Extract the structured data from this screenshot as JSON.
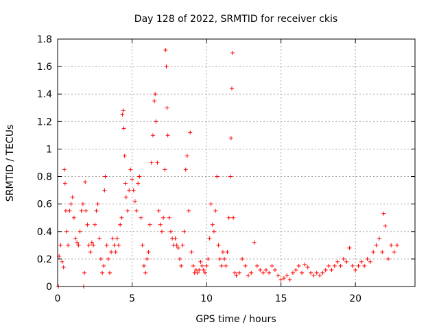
{
  "chart_data": {
    "type": "scatter",
    "title": "Day 128 of 2022, SRMTID for receiver ckis",
    "xlabel": "GPS time / hours",
    "ylabel": "SRMTID / TECUs",
    "xlim": [
      0,
      24
    ],
    "ylim": [
      0,
      1.8
    ],
    "grid": true,
    "x_ticks": [
      0,
      5,
      10,
      15,
      20
    ],
    "x_tick_labels": [
      "0",
      "5",
      "10",
      "15",
      "20"
    ],
    "y_ticks": [
      0,
      0.2,
      0.4,
      0.6,
      0.8,
      1.0,
      1.2,
      1.4,
      1.6,
      1.8
    ],
    "y_tick_labels": [
      "0",
      "0.2",
      "0.4",
      "0.6",
      "0.8",
      "1",
      "1.2",
      "1.4",
      "1.6",
      "1.8"
    ],
    "series": [
      {
        "name": "SRMTID",
        "marker": "+",
        "color": "#ff0000",
        "points": [
          [
            0.05,
            0.0
          ],
          [
            0.1,
            0.22
          ],
          [
            0.2,
            0.3
          ],
          [
            0.3,
            0.18
          ],
          [
            0.4,
            0.14
          ],
          [
            0.45,
            0.85
          ],
          [
            0.5,
            0.75
          ],
          [
            0.55,
            0.55
          ],
          [
            0.6,
            0.4
          ],
          [
            0.7,
            0.3
          ],
          [
            0.8,
            0.55
          ],
          [
            0.9,
            0.6
          ],
          [
            1.0,
            0.65
          ],
          [
            1.1,
            0.5
          ],
          [
            1.2,
            0.35
          ],
          [
            1.3,
            0.32
          ],
          [
            1.4,
            0.3
          ],
          [
            1.5,
            0.4
          ],
          [
            1.6,
            0.55
          ],
          [
            1.7,
            0.6
          ],
          [
            1.75,
            0.0
          ],
          [
            1.8,
            0.1
          ],
          [
            1.85,
            0.76
          ],
          [
            1.9,
            0.55
          ],
          [
            2.0,
            0.45
          ],
          [
            2.1,
            0.3
          ],
          [
            2.2,
            0.25
          ],
          [
            2.3,
            0.32
          ],
          [
            2.4,
            0.3
          ],
          [
            2.5,
            0.45
          ],
          [
            2.6,
            0.55
          ],
          [
            2.7,
            0.6
          ],
          [
            2.8,
            0.35
          ],
          [
            2.9,
            0.2
          ],
          [
            3.0,
            0.1
          ],
          [
            3.1,
            0.15
          ],
          [
            3.15,
            0.7
          ],
          [
            3.2,
            0.8
          ],
          [
            3.3,
            0.3
          ],
          [
            3.4,
            0.2
          ],
          [
            3.5,
            0.1
          ],
          [
            3.6,
            0.25
          ],
          [
            3.7,
            0.35
          ],
          [
            3.8,
            0.3
          ],
          [
            3.9,
            0.25
          ],
          [
            4.0,
            0.35
          ],
          [
            4.1,
            0.3
          ],
          [
            4.2,
            0.45
          ],
          [
            4.3,
            0.5
          ],
          [
            4.35,
            1.25
          ],
          [
            4.4,
            1.28
          ],
          [
            4.45,
            1.15
          ],
          [
            4.5,
            0.95
          ],
          [
            4.55,
            0.75
          ],
          [
            4.6,
            0.65
          ],
          [
            4.7,
            0.55
          ],
          [
            4.8,
            0.7
          ],
          [
            4.9,
            0.85
          ],
          [
            5.0,
            0.78
          ],
          [
            5.1,
            0.7
          ],
          [
            5.2,
            0.62
          ],
          [
            5.3,
            0.55
          ],
          [
            5.4,
            0.75
          ],
          [
            5.5,
            0.8
          ],
          [
            5.6,
            0.5
          ],
          [
            5.7,
            0.3
          ],
          [
            5.8,
            0.15
          ],
          [
            5.9,
            0.1
          ],
          [
            6.0,
            0.2
          ],
          [
            6.1,
            0.25
          ],
          [
            6.2,
            0.45
          ],
          [
            6.3,
            0.9
          ],
          [
            6.4,
            1.1
          ],
          [
            6.5,
            1.35
          ],
          [
            6.55,
            1.4
          ],
          [
            6.6,
            1.2
          ],
          [
            6.7,
            0.9
          ],
          [
            6.8,
            0.55
          ],
          [
            6.9,
            0.45
          ],
          [
            7.0,
            0.4
          ],
          [
            7.1,
            0.5
          ],
          [
            7.2,
            0.85
          ],
          [
            7.25,
            1.72
          ],
          [
            7.3,
            1.6
          ],
          [
            7.35,
            1.3
          ],
          [
            7.4,
            1.1
          ],
          [
            7.5,
            0.5
          ],
          [
            7.6,
            0.4
          ],
          [
            7.7,
            0.35
          ],
          [
            7.8,
            0.3
          ],
          [
            7.9,
            0.35
          ],
          [
            8.0,
            0.3
          ],
          [
            8.1,
            0.28
          ],
          [
            8.2,
            0.2
          ],
          [
            8.3,
            0.15
          ],
          [
            8.4,
            0.3
          ],
          [
            8.5,
            0.4
          ],
          [
            8.6,
            0.85
          ],
          [
            8.7,
            0.95
          ],
          [
            8.8,
            0.55
          ],
          [
            8.9,
            1.12
          ],
          [
            9.0,
            0.25
          ],
          [
            9.1,
            0.15
          ],
          [
            9.2,
            0.1
          ],
          [
            9.3,
            0.12
          ],
          [
            9.4,
            0.1
          ],
          [
            9.5,
            0.12
          ],
          [
            9.6,
            0.18
          ],
          [
            9.7,
            0.15
          ],
          [
            9.8,
            0.12
          ],
          [
            9.9,
            0.1
          ],
          [
            10.0,
            0.15
          ],
          [
            10.1,
            0.2
          ],
          [
            10.2,
            0.35
          ],
          [
            10.3,
            0.6
          ],
          [
            10.4,
            0.45
          ],
          [
            10.5,
            0.4
          ],
          [
            10.6,
            0.55
          ],
          [
            10.7,
            0.8
          ],
          [
            10.8,
            0.3
          ],
          [
            10.9,
            0.2
          ],
          [
            11.0,
            0.15
          ],
          [
            11.1,
            0.25
          ],
          [
            11.2,
            0.2
          ],
          [
            11.3,
            0.15
          ],
          [
            11.4,
            0.25
          ],
          [
            11.5,
            0.5
          ],
          [
            11.6,
            0.8
          ],
          [
            11.65,
            1.08
          ],
          [
            11.7,
            1.44
          ],
          [
            11.75,
            1.7
          ],
          [
            11.8,
            0.5
          ],
          [
            11.9,
            0.1
          ],
          [
            12.0,
            0.08
          ],
          [
            12.2,
            0.1
          ],
          [
            12.4,
            0.2
          ],
          [
            12.6,
            0.15
          ],
          [
            12.8,
            0.08
          ],
          [
            13.0,
            0.1
          ],
          [
            13.2,
            0.32
          ],
          [
            13.4,
            0.15
          ],
          [
            13.6,
            0.12
          ],
          [
            13.8,
            0.1
          ],
          [
            14.0,
            0.12
          ],
          [
            14.2,
            0.1
          ],
          [
            14.4,
            0.15
          ],
          [
            14.6,
            0.12
          ],
          [
            14.8,
            0.08
          ],
          [
            15.0,
            0.05
          ],
          [
            15.2,
            0.06
          ],
          [
            15.4,
            0.08
          ],
          [
            15.6,
            0.05
          ],
          [
            15.8,
            0.1
          ],
          [
            16.0,
            0.12
          ],
          [
            16.2,
            0.15
          ],
          [
            16.4,
            0.1
          ],
          [
            16.6,
            0.16
          ],
          [
            16.8,
            0.14
          ],
          [
            17.0,
            0.1
          ],
          [
            17.2,
            0.08
          ],
          [
            17.4,
            0.1
          ],
          [
            17.6,
            0.08
          ],
          [
            17.8,
            0.1
          ],
          [
            18.0,
            0.12
          ],
          [
            18.2,
            0.15
          ],
          [
            18.4,
            0.12
          ],
          [
            18.6,
            0.15
          ],
          [
            18.8,
            0.18
          ],
          [
            19.0,
            0.15
          ],
          [
            19.2,
            0.2
          ],
          [
            19.4,
            0.18
          ],
          [
            19.6,
            0.28
          ],
          [
            19.8,
            0.15
          ],
          [
            20.0,
            0.12
          ],
          [
            20.2,
            0.15
          ],
          [
            20.4,
            0.18
          ],
          [
            20.6,
            0.15
          ],
          [
            20.8,
            0.2
          ],
          [
            21.0,
            0.18
          ],
          [
            21.2,
            0.25
          ],
          [
            21.4,
            0.3
          ],
          [
            21.6,
            0.35
          ],
          [
            21.8,
            0.25
          ],
          [
            21.9,
            0.53
          ],
          [
            22.0,
            0.44
          ],
          [
            22.2,
            0.2
          ],
          [
            22.4,
            0.3
          ],
          [
            22.6,
            0.25
          ],
          [
            22.8,
            0.3
          ]
        ]
      }
    ]
  }
}
